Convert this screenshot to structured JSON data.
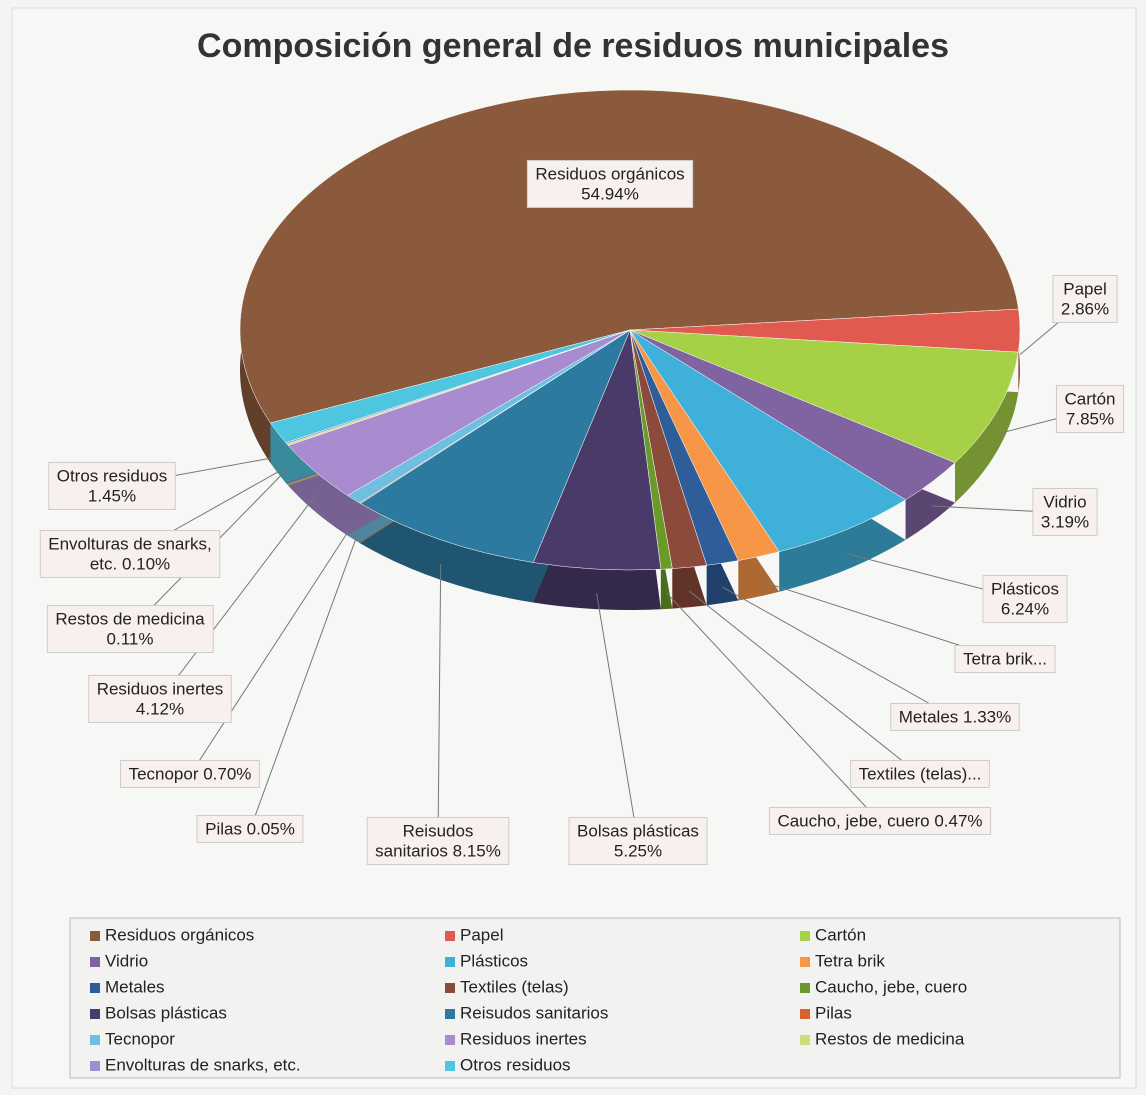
{
  "chart_data": {
    "type": "pie",
    "title": "Composición general de residuos municipales",
    "categories": [
      "Residuos orgánicos",
      "Papel",
      "Cartón",
      "Vidrio",
      "Plásticos",
      "Tetra brik",
      "Metales",
      "Textiles (telas)",
      "Caucho, jebe, cuero",
      "Bolsas plásticas",
      "Reisudos sanitarios",
      "Pilas",
      "Tecnopor",
      "Residuos inertes",
      "Restos de medicina",
      "Envolturas de snarks, etc.",
      "Otros residuos"
    ],
    "values": [
      54.94,
      2.86,
      7.85,
      3.19,
      6.24,
      1.77,
      1.33,
      1.42,
      0.47,
      5.25,
      8.15,
      0.05,
      0.7,
      4.12,
      0.11,
      0.1,
      1.45
    ],
    "value_labels": [
      [
        "Residuos orgánicos",
        "54.94%"
      ],
      [
        "Papel",
        "2.86%"
      ],
      [
        "Cartón",
        "7.85%"
      ],
      [
        "Vidrio",
        "3.19%"
      ],
      [
        "Plásticos",
        "6.24%"
      ],
      [
        "Tetra brik..."
      ],
      [
        "Metales 1.33%"
      ],
      [
        "Textiles (telas)..."
      ],
      [
        "Caucho, jebe, cuero 0.47%"
      ],
      [
        "Bolsas plásticas",
        "5.25%"
      ],
      [
        "Reisudos",
        "sanitarios 8.15%"
      ],
      [
        "Pilas 0.05%"
      ],
      [
        "Tecnopor 0.70%"
      ],
      [
        "Residuos inertes",
        "4.12%"
      ],
      [
        "Restos de medicina",
        "0.11%"
      ],
      [
        "Envolturas de snarks,",
        "etc. 0.10%"
      ],
      [
        "Otros residuos",
        "1.45%"
      ]
    ],
    "colors": [
      "#8b5a3c",
      "#e05a50",
      "#a6d146",
      "#8064a2",
      "#3fb0d9",
      "#f79646",
      "#2e5d9a",
      "#8c4a3a",
      "#6a9a2a",
      "#4a3a6a",
      "#2d7aa0",
      "#d9622b",
      "#6fc0e0",
      "#a98bd0",
      "#c8e07a",
      "#9b8fd0",
      "#4fc6e0"
    ]
  }
}
